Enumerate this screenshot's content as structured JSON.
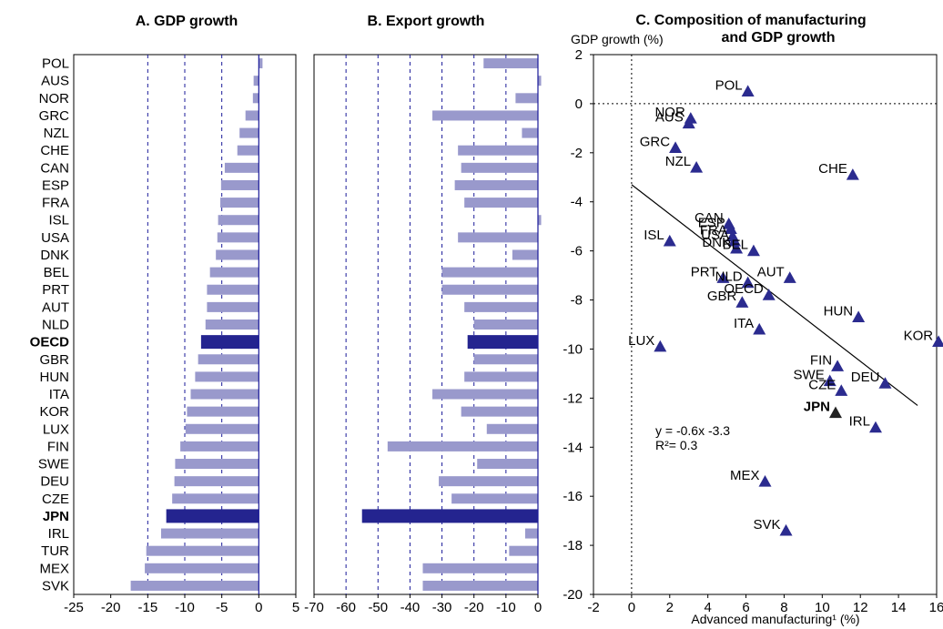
{
  "colors": {
    "bar": "#9999cc",
    "highlight": "#24248f",
    "marker": "#2b2b8f",
    "jpn_marker": "#222222",
    "grid": "#1a1a99",
    "axis": "#000000"
  },
  "chart_data": [
    {
      "type": "bar",
      "title": "A. GDP growth",
      "orientation": "horizontal",
      "categories": [
        "POL",
        "AUS",
        "NOR",
        "GRC",
        "NZL",
        "CHE",
        "CAN",
        "ESP",
        "FRA",
        "ISL",
        "USA",
        "DNK",
        "BEL",
        "PRT",
        "AUT",
        "NLD",
        "OECD",
        "GBR",
        "HUN",
        "ITA",
        "KOR",
        "LUX",
        "FIN",
        "SWE",
        "DEU",
        "CZE",
        "JPN",
        "IRL",
        "TUR",
        "MEX",
        "SVK"
      ],
      "values": [
        0.5,
        -0.7,
        -0.8,
        -1.8,
        -2.6,
        -2.9,
        -4.6,
        -5.1,
        -5.2,
        -5.5,
        -5.6,
        -5.8,
        -6.6,
        -7.0,
        -7.0,
        -7.2,
        -7.8,
        -8.2,
        -8.6,
        -9.2,
        -9.7,
        -9.9,
        -10.6,
        -11.3,
        -11.4,
        -11.7,
        -12.5,
        -13.2,
        -15.2,
        -15.4,
        -17.3
      ],
      "highlight": [
        "OECD",
        "JPN"
      ],
      "xlim": [
        -25,
        5
      ],
      "xticks": [
        "-25",
        "-20",
        "-15",
        "-10",
        "-5",
        "0",
        "5"
      ],
      "grid_lines_at": [
        -15,
        -10,
        -5
      ]
    },
    {
      "type": "bar",
      "title": "B. Export growth",
      "orientation": "horizontal",
      "categories": [
        "POL",
        "AUS",
        "NOR",
        "GRC",
        "NZL",
        "CHE",
        "CAN",
        "ESP",
        "FRA",
        "ISL",
        "USA",
        "DNK",
        "BEL",
        "PRT",
        "AUT",
        "NLD",
        "OECD",
        "GBR",
        "HUN",
        "ITA",
        "KOR",
        "LUX",
        "FIN",
        "SWE",
        "DEU",
        "CZE",
        "JPN",
        "IRL",
        "TUR",
        "MEX",
        "SVK"
      ],
      "values": [
        -17,
        1,
        -7,
        -33,
        -5,
        -25,
        -24,
        -26,
        -23,
        1,
        -25,
        -8,
        -30,
        -30,
        -23,
        -20,
        -22,
        -20,
        -23,
        -33,
        -24,
        -16,
        -47,
        -19,
        -31,
        -27,
        -55,
        -4,
        -9,
        -36,
        -36
      ],
      "highlight": [
        "OECD",
        "JPN"
      ],
      "xlim": [
        -70,
        0
      ],
      "xticks": [
        "-70",
        "-60",
        "-50",
        "-40",
        "-30",
        "-20",
        "-10",
        "0"
      ],
      "grid_lines_at": [
        -60,
        -50,
        -40,
        -30,
        -20,
        -10
      ]
    },
    {
      "type": "scatter",
      "title": "C. Composition of manufacturing and GDP growth",
      "title_line1": "C. Composition of manufacturing",
      "title_line2": "and GDP growth",
      "ylabel": "GDP growth (%)",
      "xlabel": "Advanced manufacturing¹ (%)",
      "xlim": [
        -2,
        16
      ],
      "ylim": [
        -20,
        2
      ],
      "xticks": [
        "-2",
        "0",
        "2",
        "4",
        "6",
        "8",
        "10",
        "12",
        "14",
        "16"
      ],
      "yticks": [
        "2",
        "0",
        "-2",
        "-4",
        "-6",
        "-8",
        "-10",
        "-12",
        "-14",
        "-16",
        "-18",
        "-20"
      ],
      "points": [
        {
          "label": "POL",
          "x": 6.1,
          "y": 0.5
        },
        {
          "label": "NOR",
          "x": 3.1,
          "y": -0.6
        },
        {
          "label": "AUS",
          "x": 3.0,
          "y": -0.8
        },
        {
          "label": "GRC",
          "x": 2.3,
          "y": -1.8
        },
        {
          "label": "NZL",
          "x": 3.4,
          "y": -2.6
        },
        {
          "label": "CHE",
          "x": 11.6,
          "y": -2.9
        },
        {
          "label": "CAN",
          "x": 5.1,
          "y": -4.9
        },
        {
          "label": "ESP",
          "x": 5.2,
          "y": -5.1
        },
        {
          "label": "FRA",
          "x": 5.3,
          "y": -5.4
        },
        {
          "label": "ISL",
          "x": 2.0,
          "y": -5.6
        },
        {
          "label": "USA",
          "x": 5.4,
          "y": -5.6
        },
        {
          "label": "DNK",
          "x": 5.5,
          "y": -5.9
        },
        {
          "label": "BEL",
          "x": 6.4,
          "y": -6.0
        },
        {
          "label": "PRT",
          "x": 4.8,
          "y": -7.1
        },
        {
          "label": "NLD",
          "x": 6.1,
          "y": -7.3
        },
        {
          "label": "AUT",
          "x": 8.3,
          "y": -7.1
        },
        {
          "label": "OECD",
          "x": 7.2,
          "y": -7.8
        },
        {
          "label": "GBR",
          "x": 5.8,
          "y": -8.1
        },
        {
          "label": "HUN",
          "x": 11.9,
          "y": -8.7
        },
        {
          "label": "ITA",
          "x": 6.7,
          "y": -9.2
        },
        {
          "label": "LUX",
          "x": 1.5,
          "y": -9.9
        },
        {
          "label": "KOR",
          "x": 16.1,
          "y": -9.7
        },
        {
          "label": "FIN",
          "x": 10.8,
          "y": -10.7
        },
        {
          "label": "SWE",
          "x": 10.4,
          "y": -11.3
        },
        {
          "label": "DEU",
          "x": 13.3,
          "y": -11.4
        },
        {
          "label": "CZE",
          "x": 11.0,
          "y": -11.7
        },
        {
          "label": "JPN",
          "x": 10.7,
          "y": -12.6
        },
        {
          "label": "IRL",
          "x": 12.8,
          "y": -13.2
        },
        {
          "label": "MEX",
          "x": 7.0,
          "y": -15.4
        },
        {
          "label": "SVK",
          "x": 8.1,
          "y": -17.4
        }
      ],
      "highlight": [
        "JPN"
      ],
      "trendline": {
        "slope": -0.6,
        "intercept": -3.3,
        "x_range": [
          0,
          15
        ]
      },
      "equation": "y  = -0.6x -3.3",
      "r2": "R²=  0.3",
      "zero_line_y": 0,
      "zero_line_x": 0
    }
  ]
}
